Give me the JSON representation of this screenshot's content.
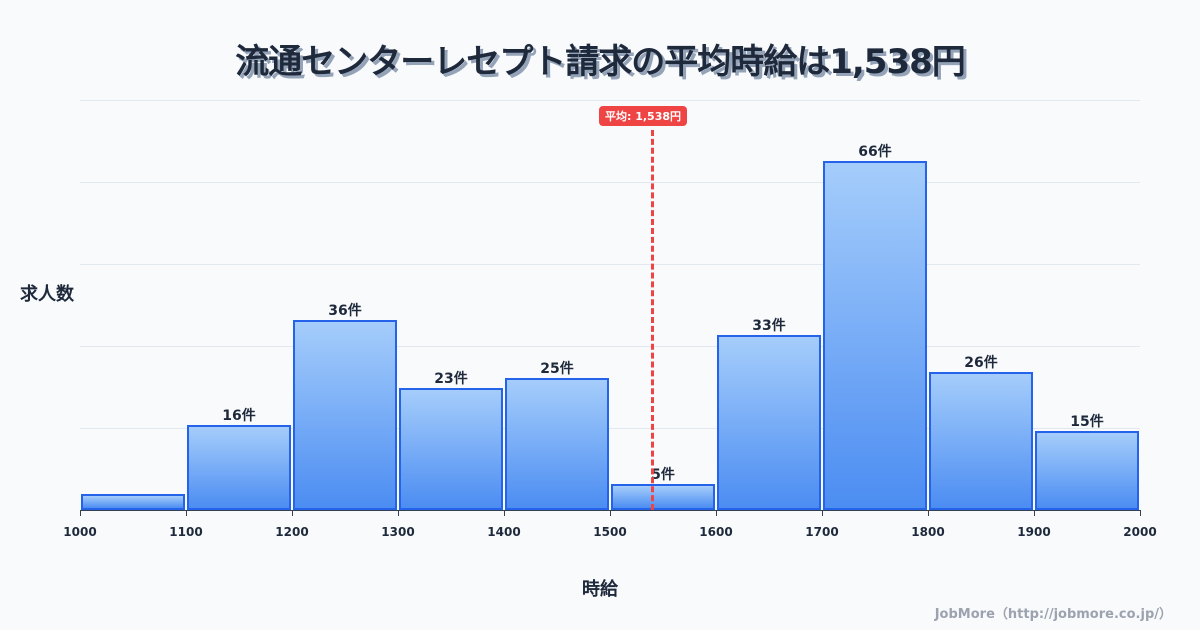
{
  "title": "流通センターレセプト請求の平均時給は1,538円",
  "ylabel": "求人数",
  "xlabel": "時給",
  "credit": "JobMore（http://jobmore.co.jp/）",
  "mean_label": "平均: 1,538円",
  "chart_data": {
    "type": "bar",
    "title": "流通センターレセプト請求の平均時給は1,538円",
    "xlabel": "時給",
    "ylabel": "求人数",
    "categories": [
      "1000-1100",
      "1100-1200",
      "1200-1300",
      "1300-1400",
      "1400-1500",
      "1500-1600",
      "1600-1700",
      "1700-1800",
      "1800-1900",
      "1900-2000"
    ],
    "values": [
      3,
      16,
      36,
      23,
      25,
      5,
      33,
      66,
      26,
      15
    ],
    "bar_labels": [
      "",
      "16件",
      "36件",
      "23件",
      "25件",
      "5件",
      "33件",
      "66件",
      "26件",
      "15件"
    ],
    "x_ticks": [
      "1000",
      "1100",
      "1200",
      "1300",
      "1400",
      "1500",
      "1600",
      "1700",
      "1800",
      "1900",
      "2000"
    ],
    "mean": 1538,
    "mean_annotation": "平均: 1,538円",
    "ylim": [
      0,
      77.5
    ],
    "grid": true,
    "colors": {
      "bar_fill_top": "#a5cdfb",
      "bar_fill_bottom": "#4c8df2",
      "bar_border": "#2563eb",
      "mean_line": "#ef4444"
    }
  }
}
